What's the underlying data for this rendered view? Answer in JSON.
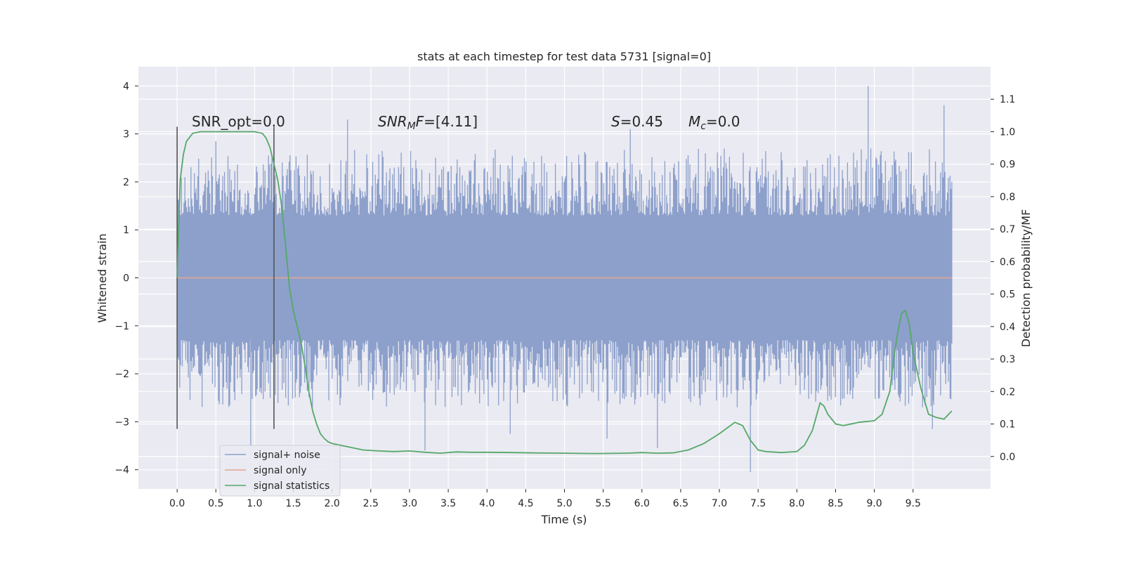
{
  "chart_data": {
    "type": "line",
    "title": "stats at each timestep for test data 5731 [signal=0]",
    "xlabel": "Time (s)",
    "ylabel": "Whitened strain",
    "ylabel_right": "Detection probability/MF",
    "xlim": [
      -0.5,
      10.5
    ],
    "ylim": [
      -4.4,
      4.4
    ],
    "ylim_right": [
      -0.1,
      1.2
    ],
    "x_ticks": [
      "0.0",
      "0.5",
      "1.0",
      "1.5",
      "2.0",
      "2.5",
      "3.0",
      "3.5",
      "4.0",
      "4.5",
      "5.0",
      "5.5",
      "6.0",
      "6.5",
      "7.0",
      "7.5",
      "8.0",
      "8.5",
      "9.0",
      "9.5"
    ],
    "y_ticks": [
      "4",
      "3",
      "2",
      "1",
      "0",
      "−1",
      "−2",
      "−3",
      "−4"
    ],
    "y_right_ticks": [
      "1.1",
      "1.0",
      "0.9",
      "0.8",
      "0.7",
      "0.6",
      "0.5",
      "0.4",
      "0.3",
      "0.2",
      "0.1",
      "0.0"
    ],
    "grid": true,
    "legend_position": "lower-left",
    "annotations": {
      "snr_opt": "SNR_opt=0.0",
      "snr_mf_italic": "SNR",
      "snr_mf_sub": "M",
      "snr_mf_f": "F",
      "snr_mf_rest": "=[4.11]",
      "s_italic": "S",
      "s_rest": "=0.45",
      "mc_italic": "M",
      "mc_sub": "c",
      "mc_rest": "=0.0"
    },
    "vertical_markers_x": [
      0.0,
      1.25
    ],
    "series": [
      {
        "name": "signal+ noise",
        "color": "#8da0cb",
        "description_values": {
          "x_range": [
            0.0,
            10.0
          ],
          "typical_amplitude": 1.3,
          "peak_max": 4.0,
          "peak_min": -4.05
        }
      },
      {
        "name": "signal only",
        "color": "#e8a58c",
        "x": [
          0.0,
          10.0
        ],
        "y": [
          0.0,
          0.0
        ]
      },
      {
        "name": "signal statistics",
        "color": "#55a868",
        "axis": "right",
        "x": [
          0.0,
          0.04,
          0.08,
          0.12,
          0.2,
          0.3,
          0.5,
          0.7,
          0.9,
          1.0,
          1.1,
          1.15,
          1.2,
          1.25,
          1.3,
          1.35,
          1.4,
          1.45,
          1.5,
          1.55,
          1.6,
          1.65,
          1.7,
          1.75,
          1.8,
          1.85,
          1.9,
          1.95,
          2.0,
          2.1,
          2.2,
          2.4,
          2.6,
          2.8,
          3.0,
          3.2,
          3.4,
          3.6,
          3.8,
          4.0,
          4.3,
          4.6,
          5.0,
          5.4,
          5.8,
          6.0,
          6.2,
          6.4,
          6.6,
          6.8,
          7.0,
          7.2,
          7.3,
          7.4,
          7.5,
          7.6,
          7.8,
          8.0,
          8.1,
          8.2,
          8.3,
          8.35,
          8.4,
          8.5,
          8.6,
          8.8,
          9.0,
          9.1,
          9.2,
          9.25,
          9.3,
          9.35,
          9.4,
          9.45,
          9.5,
          9.6,
          9.7,
          9.8,
          9.9,
          10.0
        ],
        "y": [
          0.55,
          0.85,
          0.93,
          0.97,
          0.995,
          1.0,
          1.0,
          1.0,
          1.0,
          1.0,
          0.995,
          0.98,
          0.95,
          0.9,
          0.85,
          0.77,
          0.65,
          0.52,
          0.45,
          0.4,
          0.35,
          0.28,
          0.2,
          0.14,
          0.1,
          0.07,
          0.055,
          0.045,
          0.04,
          0.035,
          0.03,
          0.02,
          0.017,
          0.015,
          0.017,
          0.013,
          0.01,
          0.014,
          0.013,
          0.013,
          0.012,
          0.011,
          0.01,
          0.009,
          0.01,
          0.012,
          0.01,
          0.011,
          0.02,
          0.04,
          0.07,
          0.105,
          0.095,
          0.05,
          0.02,
          0.015,
          0.012,
          0.015,
          0.035,
          0.08,
          0.165,
          0.155,
          0.13,
          0.1,
          0.095,
          0.105,
          0.11,
          0.13,
          0.2,
          0.3,
          0.38,
          0.44,
          0.45,
          0.41,
          0.32,
          0.21,
          0.13,
          0.12,
          0.115,
          0.14
        ]
      }
    ]
  }
}
